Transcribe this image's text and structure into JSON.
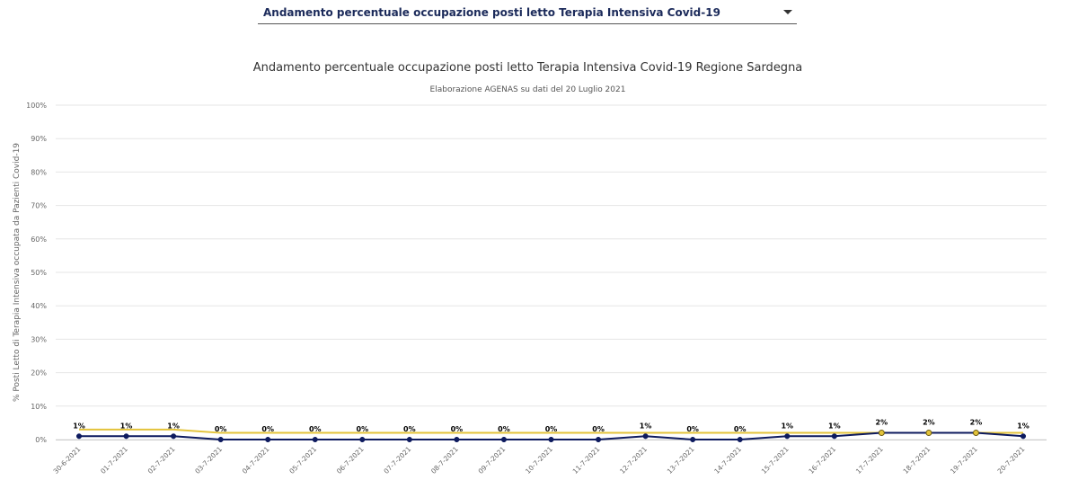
{
  "selector": {
    "label": "Andamento percentuale occupazione posti letto Terapia Intensiva Covid-19"
  },
  "chart_data": {
    "type": "line",
    "title": "Andamento percentuale occupazione posti letto Terapia Intensiva Covid-19 Regione Sardegna",
    "subtitle": "Elaborazione AGENAS su dati del 20 Luglio 2021",
    "ylabel": "% Posti Letto di Terapia Intensiva occupata da Pazienti Covid-19",
    "xlabel": "",
    "ylim": [
      0,
      100
    ],
    "ytick_labels": [
      "0%",
      "10%",
      "20%",
      "30%",
      "40%",
      "50%",
      "60%",
      "70%",
      "80%",
      "90%",
      "100%"
    ],
    "grid": true,
    "categories": [
      "30-6-2021",
      "01-7-2021",
      "02-7-2021",
      "03-7-2021",
      "04-7-2021",
      "05-7-2021",
      "06-7-2021",
      "07-7-2021",
      "08-7-2021",
      "09-7-2021",
      "10-7-2021",
      "11-7-2021",
      "12-7-2021",
      "13-7-2021",
      "14-7-2021",
      "15-7-2021",
      "16-7-2021",
      "17-7-2021",
      "18-7-2021",
      "19-7-2021",
      "20-7-2021"
    ],
    "data_labels": [
      "1%",
      "1%",
      "1%",
      "0%",
      "0%",
      "0%",
      "0%",
      "0%",
      "0%",
      "0%",
      "0%",
      "0%",
      "1%",
      "0%",
      "0%",
      "1%",
      "1%",
      "2%",
      "2%",
      "2%",
      "1%"
    ],
    "series": [
      {
        "color": "#0d1a5e",
        "marker_color": "#0d1a5e",
        "values": [
          1,
          1,
          1,
          0,
          0,
          0,
          0,
          0,
          0,
          0,
          0,
          0,
          1,
          0,
          0,
          1,
          1,
          2,
          2,
          2,
          1
        ]
      },
      {
        "color": "#e3c33a",
        "values": [
          3,
          3,
          3,
          2,
          2,
          2,
          2,
          2,
          2,
          2,
          2,
          2,
          2,
          2,
          2,
          2,
          2,
          2,
          2,
          2,
          2
        ]
      }
    ],
    "colors": {
      "grid": "#e6e6e6",
      "axis": "#cccccc"
    }
  }
}
